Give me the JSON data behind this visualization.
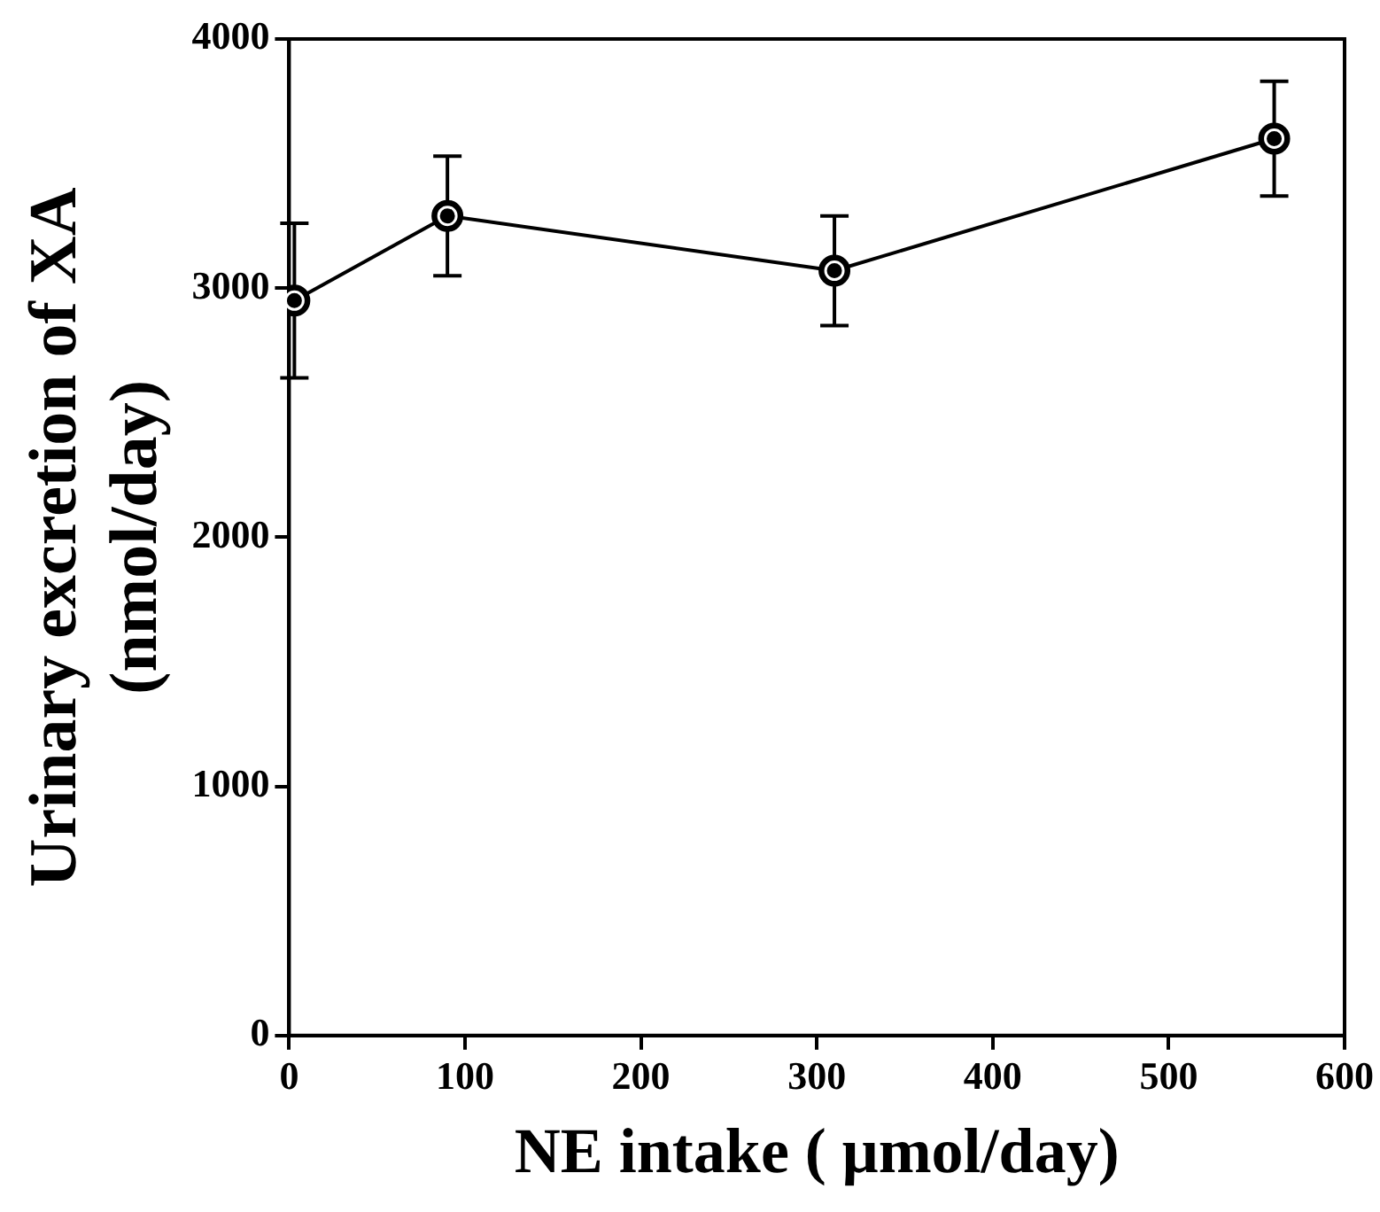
{
  "chart_data": {
    "type": "line",
    "xlabel": "NE intake ( μmol/day)",
    "ylabel": "Urinary excretion of XA\n(nmol/day)",
    "x": [
      3,
      90,
      310,
      560
    ],
    "series": [
      {
        "color": "#000000",
        "values": [
          2950,
          3290,
          3070,
          3600
        ],
        "errors": [
          310,
          240,
          220,
          230
        ]
      }
    ],
    "xlim": [
      0,
      600
    ],
    "xticks": [
      0,
      100,
      200,
      300,
      400,
      500,
      600
    ],
    "ylim": [
      0,
      4000
    ],
    "yticks": [
      0,
      1000,
      2000,
      3000,
      4000
    ],
    "grid": false,
    "legend": false,
    "marker": "circle",
    "line_style": "solid"
  }
}
